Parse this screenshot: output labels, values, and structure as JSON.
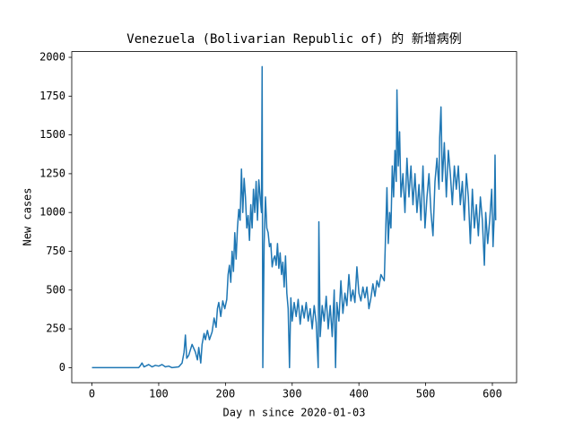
{
  "chart_data": {
    "type": "line",
    "title": "Venezuela (Bolivarian Republic of) 的 新增病例",
    "xlabel": "Day n since 2020-01-03",
    "ylabel": "New cases",
    "xlim": [
      -30.3,
      636.3
    ],
    "ylim": [
      -97,
      2037
    ],
    "xticks": [
      0,
      100,
      200,
      300,
      400,
      500,
      600
    ],
    "yticks": [
      0,
      250,
      500,
      750,
      1000,
      1250,
      1500,
      1750,
      2000
    ],
    "grid": false,
    "series": [
      {
        "name": "New cases",
        "color": "#1f77b4",
        "x": [
          0,
          70,
          72,
          75,
          78,
          85,
          90,
          95,
          100,
          105,
          110,
          115,
          120,
          130,
          135,
          138,
          140,
          142,
          145,
          150,
          155,
          158,
          160,
          163,
          165,
          168,
          170,
          173,
          176,
          180,
          183,
          186,
          188,
          190,
          193,
          196,
          199,
          202,
          204,
          206,
          208,
          210,
          212,
          214,
          216,
          218,
          220,
          222,
          224,
          226,
          228,
          230,
          232,
          234,
          236,
          238,
          240,
          242,
          244,
          246,
          248,
          250,
          252,
          254,
          255,
          256,
          258,
          260,
          262,
          264,
          266,
          268,
          270,
          272,
          274,
          276,
          278,
          280,
          282,
          284,
          286,
          288,
          290,
          292,
          294,
          296,
          298,
          300,
          303,
          306,
          309,
          312,
          315,
          318,
          321,
          324,
          327,
          330,
          333,
          336,
          339,
          340,
          342,
          345,
          348,
          351,
          354,
          357,
          360,
          363,
          365,
          367,
          370,
          373,
          376,
          379,
          382,
          385,
          388,
          391,
          394,
          397,
          400,
          403,
          406,
          409,
          412,
          415,
          418,
          421,
          424,
          427,
          430,
          433,
          438,
          442,
          444,
          446,
          448,
          450,
          452,
          454,
          456,
          457,
          459,
          461,
          463,
          466,
          469,
          472,
          475,
          478,
          481,
          484,
          487,
          490,
          493,
          496,
          499,
          502,
          505,
          508,
          511,
          514,
          517,
          520,
          521,
          523,
          525,
          528,
          531,
          534,
          537,
          540,
          543,
          546,
          549,
          552,
          555,
          558,
          561,
          564,
          567,
          570,
          573,
          576,
          579,
          582,
          585,
          588,
          590,
          593,
          596,
          599,
          601,
          603,
          604,
          605
        ],
        "values": [
          0,
          0,
          10,
          30,
          5,
          20,
          5,
          15,
          10,
          20,
          5,
          10,
          0,
          5,
          30,
          100,
          210,
          60,
          80,
          150,
          100,
          50,
          130,
          30,
          150,
          220,
          180,
          240,
          180,
          230,
          320,
          260,
          380,
          420,
          330,
          430,
          380,
          440,
          600,
          660,
          550,
          750,
          620,
          870,
          700,
          900,
          1020,
          950,
          1280,
          1000,
          1220,
          1100,
          900,
          980,
          820,
          1050,
          900,
          1150,
          1000,
          1200,
          950,
          1210,
          1100,
          1000,
          1940,
          0,
          800,
          1100,
          900,
          870,
          780,
          800,
          650,
          700,
          720,
          660,
          800,
          640,
          740,
          600,
          680,
          520,
          720,
          480,
          380,
          0,
          450,
          300,
          420,
          330,
          440,
          280,
          400,
          320,
          420,
          300,
          380,
          250,
          400,
          290,
          0,
          940,
          200,
          400,
          300,
          460,
          250,
          400,
          200,
          500,
          0,
          420,
          300,
          560,
          350,
          480,
          400,
          600,
          430,
          500,
          420,
          650,
          480,
          430,
          520,
          450,
          520,
          380,
          450,
          540,
          460,
          560,
          520,
          600,
          560,
          1160,
          800,
          1000,
          900,
          1300,
          1100,
          1400,
          1200,
          1790,
          1300,
          1520,
          1100,
          1250,
          1000,
          1350,
          1100,
          1300,
          1050,
          1250,
          1000,
          1180,
          950,
          1300,
          900,
          1100,
          1250,
          1000,
          850,
          1200,
          1350,
          1150,
          1480,
          1680,
          1200,
          1450,
          1100,
          1400,
          1250,
          1050,
          1300,
          1150,
          1300,
          1050,
          1200,
          950,
          1250,
          1100,
          800,
          1150,
          900,
          1050,
          850,
          1100,
          950,
          660,
          1000,
          800,
          950,
          1150,
          780,
          1000,
          1370,
          950
        ]
      }
    ]
  }
}
